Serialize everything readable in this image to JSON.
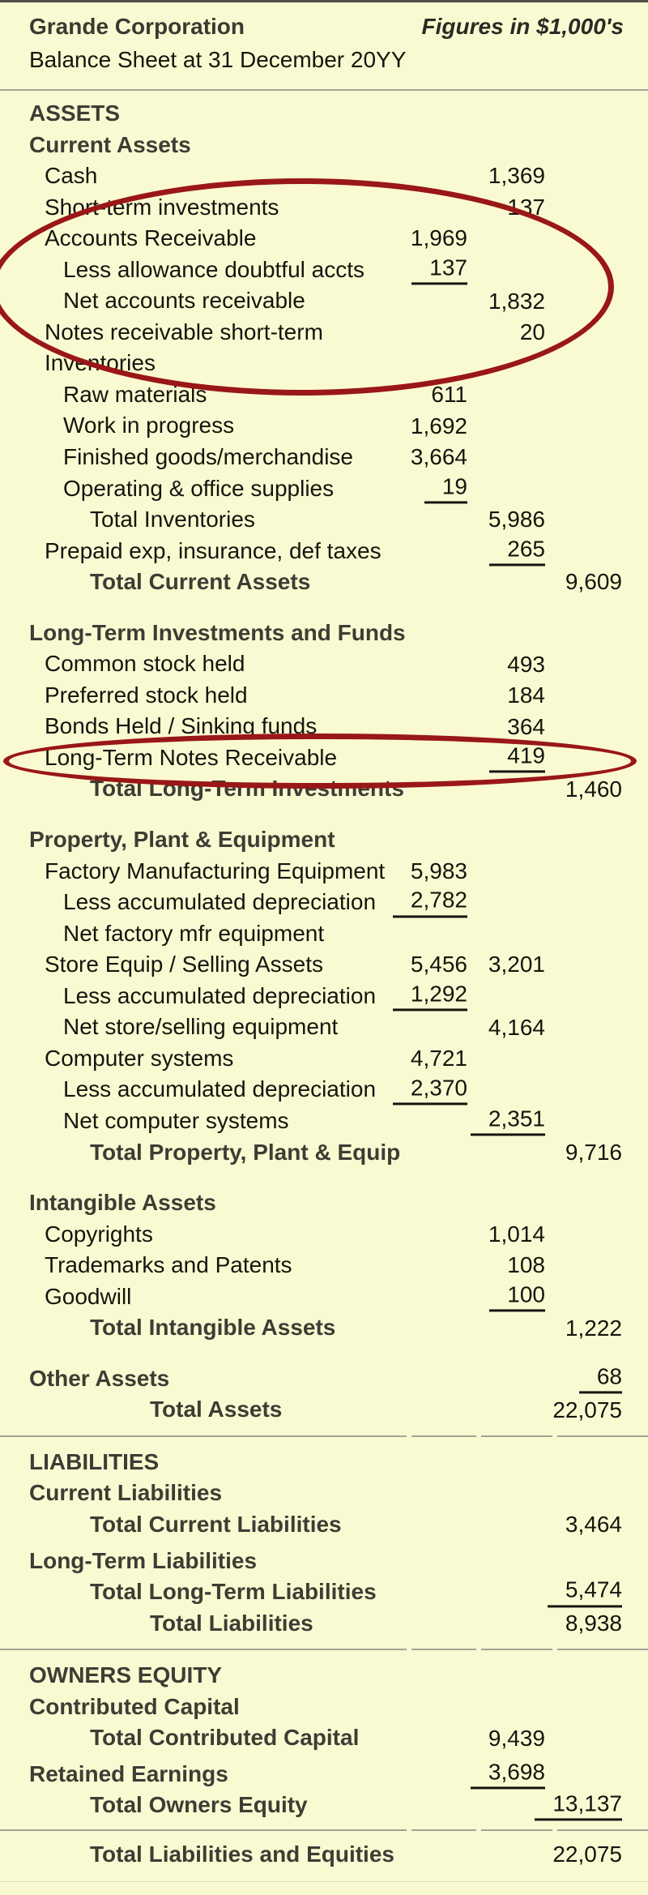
{
  "page": {
    "background_color": "#FAFAD2",
    "divider_color": "#A3A396",
    "annotation_color": "#9A1717",
    "header_text_color": "#3D3D35",
    "body_text_color": "#15150F"
  },
  "header": {
    "company": "Grande Corporation",
    "units_note": "Figures in $1,000's",
    "subtitle": "Balance Sheet at 31 December 20YY"
  },
  "annotations": [
    {
      "name": "ellipse-accounts-receivable",
      "shape": "ellipse",
      "color": "#9A1717",
      "around": "Accounts Receivable through Inventories rows"
    },
    {
      "name": "ellipse-long-term-notes-receivable",
      "shape": "ellipse",
      "color": "#9A1717",
      "around": "Long-Term Notes Receivable 419"
    }
  ],
  "rows": [
    {
      "label": "ASSETS",
      "bold": true,
      "indent": 0
    },
    {
      "label": "Current Assets",
      "bold": true,
      "indent": 0
    },
    {
      "label": "Cash",
      "bold": false,
      "indent": 1,
      "c2": "1,369"
    },
    {
      "label": "Short-term investments",
      "bold": false,
      "indent": 1,
      "c2": "137"
    },
    {
      "label": "Accounts Receivable",
      "bold": false,
      "indent": 1,
      "c1": "1,969"
    },
    {
      "label": "Less allowance doubtful accts",
      "bold": false,
      "indent": 2,
      "c1": "137",
      "ul": "c1"
    },
    {
      "label": "Net accounts receivable",
      "bold": false,
      "indent": 2,
      "c2": "1,832"
    },
    {
      "label": "Notes receivable short-term",
      "bold": false,
      "indent": 1,
      "c2": "20"
    },
    {
      "label": "Inventories",
      "bold": false,
      "indent": 1
    },
    {
      "label": "Raw materials",
      "bold": false,
      "indent": 2,
      "c1": "611"
    },
    {
      "label": "Work in progress",
      "bold": false,
      "indent": 2,
      "c1": "1,692"
    },
    {
      "label": "Finished goods/merchandise",
      "bold": false,
      "indent": 2,
      "c1": "3,664"
    },
    {
      "label": "Operating & office supplies",
      "bold": false,
      "indent": 2,
      "c1": "19",
      "ul": "c1"
    },
    {
      "label": "Total Inventories",
      "bold": false,
      "indent": 3,
      "c2": "5,986"
    },
    {
      "label": "Prepaid exp, insurance, def taxes",
      "bold": false,
      "indent": 1,
      "c2": "265",
      "ul": "c2"
    },
    {
      "label": "Total Current Assets",
      "bold": true,
      "indent": 3,
      "c3": "9,609"
    },
    {
      "label": "Long-Term Investments and Funds",
      "bold": true,
      "indent": 0,
      "gap": "large"
    },
    {
      "label": "Common stock held",
      "bold": false,
      "indent": 1,
      "c2": "493"
    },
    {
      "label": "Preferred stock held",
      "bold": false,
      "indent": 1,
      "c2": "184"
    },
    {
      "label": "Bonds Held / Sinking funds",
      "bold": false,
      "indent": 1,
      "c2": "364"
    },
    {
      "label": "Long-Term Notes Receivable",
      "bold": false,
      "indent": 1,
      "c2": "419",
      "ul": "c2"
    },
    {
      "label": "Total Long-Term Investments",
      "bold": true,
      "indent": 3,
      "c3": "1,460"
    },
    {
      "label": "Property, Plant & Equipment",
      "bold": true,
      "indent": 0,
      "gap": "large"
    },
    {
      "label": "Factory Manufacturing Equipment",
      "bold": false,
      "indent": 1,
      "c1": "5,983"
    },
    {
      "label": "Less accumulated depreciation",
      "bold": false,
      "indent": 2,
      "c1": "2,782",
      "ul": "c1"
    },
    {
      "label": "Net factory mfr equipment",
      "bold": false,
      "indent": 2
    },
    {
      "label": "Store Equip / Selling Assets",
      "bold": false,
      "indent": 1,
      "c1": "5,456",
      "c2": "3,201"
    },
    {
      "label": "Less accumulated depreciation",
      "bold": false,
      "indent": 2,
      "c1": "1,292",
      "ul": "c1"
    },
    {
      "label": "Net store/selling equipment",
      "bold": false,
      "indent": 2,
      "c2": "4,164"
    },
    {
      "label": "Computer systems",
      "bold": false,
      "indent": 1,
      "c1": "4,721"
    },
    {
      "label": "Less accumulated depreciation",
      "bold": false,
      "indent": 2,
      "c1": "2,370",
      "ul": "c1"
    },
    {
      "label": "Net computer systems",
      "bold": false,
      "indent": 2,
      "c2": "2,351",
      "ul": "c2"
    },
    {
      "label": "Total Property, Plant & Equip",
      "bold": true,
      "indent": 3,
      "c3": "9,716"
    },
    {
      "label": "Intangible Assets",
      "bold": true,
      "indent": 0,
      "gap": "large"
    },
    {
      "label": "Copyrights",
      "bold": false,
      "indent": 1,
      "c2": "1,014"
    },
    {
      "label": "Trademarks and Patents",
      "bold": false,
      "indent": 1,
      "c2": "108"
    },
    {
      "label": "Goodwill",
      "bold": false,
      "indent": 1,
      "c2": "100",
      "ul": "c2"
    },
    {
      "label": "Total Intangible Assets",
      "bold": true,
      "indent": 3,
      "c3": "1,222"
    },
    {
      "label": "Other Assets",
      "bold": true,
      "indent": 0,
      "gap": "large",
      "c3": "68",
      "ul": "c3"
    },
    {
      "label": "Total Assets",
      "bold": true,
      "indent": 4,
      "c3": "22,075"
    },
    {
      "label": "LIABILITIES",
      "bold": true,
      "indent": 0,
      "divider_before": "normal"
    },
    {
      "label": "Current Liabilities",
      "bold": true,
      "indent": 0
    },
    {
      "label": "Total Current Liabilities",
      "bold": true,
      "indent": 3,
      "c3": "3,464"
    },
    {
      "label": "Long-Term Liabilities",
      "bold": true,
      "indent": 0,
      "gap": "small"
    },
    {
      "label": "Total Long-Term Liabilities",
      "bold": true,
      "indent": 3,
      "c3": "5,474",
      "ul": "c3"
    },
    {
      "label": "Total Liabilities",
      "bold": true,
      "indent": 4,
      "c3": "8,938"
    },
    {
      "label": "OWNERS EQUITY",
      "bold": true,
      "indent": 0,
      "divider_before": "normal"
    },
    {
      "label": "Contributed Capital",
      "bold": true,
      "indent": 0
    },
    {
      "label": "Total Contributed Capital",
      "bold": true,
      "indent": 3,
      "c2": "9,439"
    },
    {
      "label": "Retained Earnings",
      "bold": true,
      "indent": 0,
      "gap": "small",
      "c2": "3,698",
      "ul": "c2"
    },
    {
      "label": "Total Owners Equity",
      "bold": true,
      "indent": 3,
      "c3": "13,137",
      "ul": "c3"
    },
    {
      "label": "Total Liabilities and Equities",
      "bold": true,
      "indent": 3,
      "c3": "22,075",
      "divider_before": "tight"
    }
  ]
}
